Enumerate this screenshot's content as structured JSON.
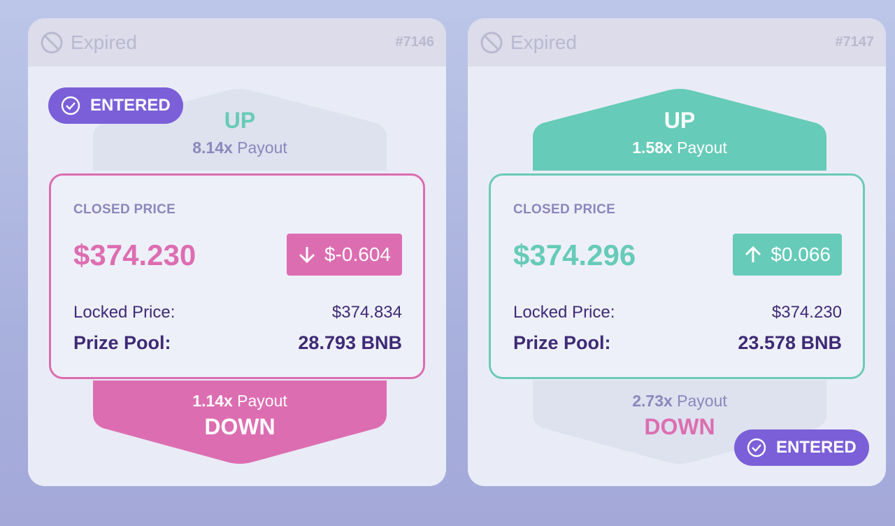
{
  "colors": {
    "bull": "#66cbb8",
    "bear": "#dd6db1",
    "neutral_shape": "#dde2ee",
    "text_dark": "#3e2a75",
    "payout_muted": "#8c86bd",
    "entered_badge": "#7b5fd8"
  },
  "cards": [
    {
      "status_icon": "prohibited-icon",
      "status": "Expired",
      "round_id": "#7146",
      "up_label": "UP",
      "up_payout_multiplier": "8.14x",
      "up_payout_text": "Payout",
      "closed_price_label": "CLOSED PRICE",
      "closed_price": "$374.230",
      "price_change": "$-0.604",
      "price_change_direction": "down",
      "locked_price_label": "Locked Price:",
      "locked_price": "$374.834",
      "prize_pool_label": "Prize Pool:",
      "prize_pool": "28.793 BNB",
      "down_payout_multiplier": "1.14x",
      "down_payout_text": "Payout",
      "down_label": "DOWN",
      "entered_label": "ENTERED",
      "entered_position": "up"
    },
    {
      "status_icon": "prohibited-icon",
      "status": "Expired",
      "round_id": "#7147",
      "up_label": "UP",
      "up_payout_multiplier": "1.58x",
      "up_payout_text": "Payout",
      "closed_price_label": "CLOSED PRICE",
      "closed_price": "$374.296",
      "price_change": "$0.066",
      "price_change_direction": "up",
      "locked_price_label": "Locked Price:",
      "locked_price": "$374.230",
      "prize_pool_label": "Prize Pool:",
      "prize_pool": "23.578 BNB",
      "down_payout_multiplier": "2.73x",
      "down_payout_text": "Payout",
      "down_label": "DOWN",
      "entered_label": "ENTERED",
      "entered_position": "down"
    }
  ]
}
